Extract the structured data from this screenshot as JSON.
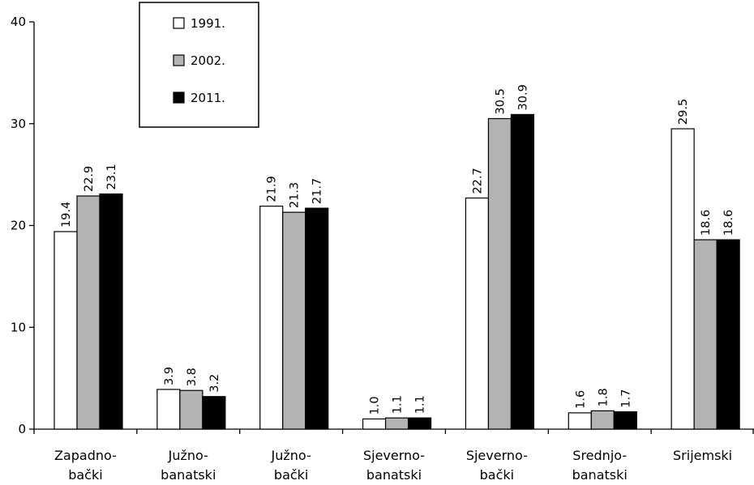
{
  "chart_data": {
    "type": "bar",
    "categories": [
      [
        "Zapadno-",
        "bački"
      ],
      [
        "Južno-",
        "banatski"
      ],
      [
        "Južno-",
        "bački"
      ],
      [
        "Sjeverno-",
        "banatski"
      ],
      [
        "Sjeverno-",
        "bački"
      ],
      [
        "Srednjo-",
        "banatski"
      ],
      [
        "Srijemski"
      ]
    ],
    "series": [
      {
        "name": "1991.",
        "color": "#ffffff",
        "values": [
          19.4,
          3.9,
          21.9,
          1.0,
          22.7,
          1.6,
          29.5
        ]
      },
      {
        "name": "2002.",
        "color": "#b3b3b3",
        "values": [
          22.9,
          3.8,
          21.3,
          1.1,
          30.5,
          1.8,
          18.6
        ]
      },
      {
        "name": "2011.",
        "color": "#000000",
        "values": [
          23.1,
          3.2,
          21.7,
          1.1,
          30.9,
          1.7,
          18.6
        ]
      }
    ],
    "value_labels": [
      [
        "19.4",
        "22.9",
        "23.1"
      ],
      [
        "3.9",
        "3.8",
        "3.2"
      ],
      [
        "21.9",
        "21.3",
        "21.7"
      ],
      [
        "1.0",
        "1.1",
        "1.1"
      ],
      [
        "22.7",
        "30.5",
        "30.9"
      ],
      [
        "1.6",
        "1.8",
        "1.7"
      ],
      [
        "29.5",
        "18.6",
        "18.6"
      ]
    ],
    "ylim": [
      0,
      40
    ],
    "yticks": [
      0,
      10,
      20,
      30,
      40
    ],
    "title": "",
    "xlabel": "",
    "ylabel": "",
    "grid": false,
    "legend_position": "top-left"
  }
}
